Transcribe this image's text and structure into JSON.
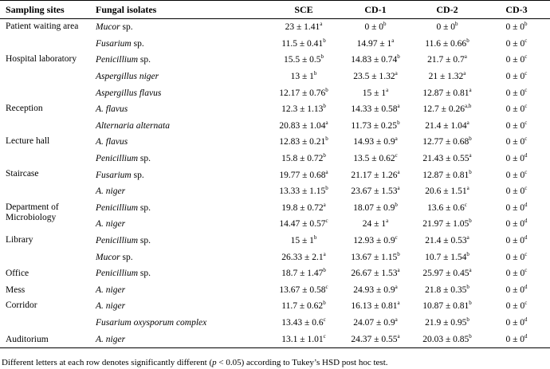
{
  "headers": {
    "site": "Sampling sites",
    "fungus": "Fungal isolates",
    "sce": "SCE",
    "cd1": "CD-1",
    "cd2": "CD-2",
    "cd3": "CD-3"
  },
  "sites": [
    {
      "name": "Patient waiting area",
      "rows": [
        {
          "genus": "Mucor",
          "sp": " sp.",
          "sce": "23 ± 1.41",
          "sce_s": "a",
          "cd1": "0 ± 0",
          "cd1_s": "b",
          "cd2": "0 ± 0",
          "cd2_s": "b",
          "cd3": "0 ± 0",
          "cd3_s": "b"
        },
        {
          "genus": "Fusarium",
          "sp": " sp.",
          "sce": "11.5 ± 0.41",
          "sce_s": "b",
          "cd1": "14.97 ± 1",
          "cd1_s": "a",
          "cd2": "11.6 ± 0.66",
          "cd2_s": "b",
          "cd3": "0 ± 0",
          "cd3_s": "c"
        }
      ]
    },
    {
      "name": "Hospital laboratory",
      "rows": [
        {
          "genus": "Penicillium",
          "sp": " sp.",
          "sce": "15.5 ± 0.5",
          "sce_s": "b",
          "cd1": "14.83 ± 0.74",
          "cd1_s": "b",
          "cd2": "21.7 ± 0.7",
          "cd2_s": "a",
          "cd3": "0 ± 0",
          "cd3_s": "c"
        },
        {
          "genus": "Aspergillus niger",
          "sp": "",
          "sce": "13 ± 1",
          "sce_s": "b",
          "cd1": "23.5 ± 1.32",
          "cd1_s": "a",
          "cd2": "21 ± 1.32",
          "cd2_s": "a",
          "cd3": "0 ± 0",
          "cd3_s": "c"
        },
        {
          "genus": "Aspergillus flavus",
          "sp": "",
          "sce": "12.17 ± 0.76",
          "sce_s": "b",
          "cd1": "15 ± 1",
          "cd1_s": "a",
          "cd2": "12.87 ± 0.81",
          "cd2_s": "a",
          "cd3": "0 ± 0",
          "cd3_s": "c"
        }
      ]
    },
    {
      "name": "Reception",
      "rows": [
        {
          "genus": "A. flavus",
          "sp": "",
          "sce": "12.3 ± 1.13",
          "sce_s": "b",
          "cd1": "14.33 ± 0.58",
          "cd1_s": "a",
          "cd2": "12.7 ± 0.26",
          "cd2_s": "a,b",
          "cd3": "0 ± 0",
          "cd3_s": "c"
        },
        {
          "genus": "Alternaria alternata",
          "sp": "",
          "sce": "20.83 ± 1.04",
          "sce_s": "a",
          "cd1": "11.73 ± 0.25",
          "cd1_s": "b",
          "cd2": "21.4 ± 1.04",
          "cd2_s": "a",
          "cd3": "0 ± 0",
          "cd3_s": "c"
        }
      ]
    },
    {
      "name": "Lecture hall",
      "rows": [
        {
          "genus": "A. flavus",
          "sp": "",
          "sce": "12.83 ± 0.21",
          "sce_s": "b",
          "cd1": "14.93 ± 0.9",
          "cd1_s": "a",
          "cd2": "12.77 ± 0.68",
          "cd2_s": "b",
          "cd3": "0 ± 0",
          "cd3_s": "c"
        },
        {
          "genus": "Penicillium",
          "sp": " sp.",
          "sce": "15.8 ± 0.72",
          "sce_s": "b",
          "cd1": "13.5 ± 0.62",
          "cd1_s": "c",
          "cd2": "21.43 ± 0.55",
          "cd2_s": "a",
          "cd3": "0 ± 0",
          "cd3_s": "d"
        }
      ]
    },
    {
      "name": "Staircase",
      "rows": [
        {
          "genus": "Fusarium",
          "sp": " sp.",
          "sce": "19.77 ± 0.68",
          "sce_s": "a",
          "cd1": "21.17 ± 1.26",
          "cd1_s": "a",
          "cd2": "12.87 ± 0.81",
          "cd2_s": "b",
          "cd3": "0 ± 0",
          "cd3_s": "c"
        },
        {
          "genus": "A. niger",
          "sp": "",
          "sce": "13.33 ± 1.15",
          "sce_s": "b",
          "cd1": "23.67 ± 1.53",
          "cd1_s": "a",
          "cd2": "20.6 ± 1.51",
          "cd2_s": "a",
          "cd3": "0 ± 0",
          "cd3_s": "c"
        }
      ]
    },
    {
      "name": "Department of Microbiology",
      "rows": [
        {
          "genus": "Penicillium",
          "sp": " sp.",
          "sce": "19.8 ± 0.72",
          "sce_s": "a",
          "cd1": "18.07 ± 0.9",
          "cd1_s": "b",
          "cd2": "13.6 ± 0.6",
          "cd2_s": "c",
          "cd3": "0 ± 0",
          "cd3_s": "d"
        },
        {
          "genus": "A. niger",
          "sp": "",
          "sce": "14.47 ± 0.57",
          "sce_s": "c",
          "cd1": "24 ± 1",
          "cd1_s": "a",
          "cd2": "21.97 ± 1.05",
          "cd2_s": "b",
          "cd3": "0 ± 0",
          "cd3_s": "d"
        }
      ]
    },
    {
      "name": "Library",
      "rows": [
        {
          "genus": "Penicillium",
          "sp": " sp.",
          "sce": "15 ± 1",
          "sce_s": "b",
          "cd1": "12.93 ± 0.9",
          "cd1_s": "c",
          "cd2": "21.4 ± 0.53",
          "cd2_s": "a",
          "cd3": "0 ± 0",
          "cd3_s": "d"
        },
        {
          "genus": "Mucor",
          "sp": " sp.",
          "sce": "26.33 ± 2.1",
          "sce_s": "a",
          "cd1": "13.67 ± 1.15",
          "cd1_s": "b",
          "cd2": "10.7 ± 1.54",
          "cd2_s": "b",
          "cd3": "0 ± 0",
          "cd3_s": "c"
        }
      ]
    },
    {
      "name": "Office",
      "rows": [
        {
          "genus": "Penicillium",
          "sp": " sp.",
          "sce": "18.7 ± 1.47",
          "sce_s": "b",
          "cd1": "26.67 ± 1.53",
          "cd1_s": "a",
          "cd2": "25.97 ± 0.45",
          "cd2_s": "a",
          "cd3": "0 ± 0",
          "cd3_s": "c"
        }
      ]
    },
    {
      "name": "Mess",
      "rows": [
        {
          "genus": "A. niger",
          "sp": "",
          "sce": "13.67 ± 0.58",
          "sce_s": "c",
          "cd1": "24.93 ± 0.9",
          "cd1_s": "a",
          "cd2": "21.8 ± 0.35",
          "cd2_s": "b",
          "cd3": "0 ± 0",
          "cd3_s": "d"
        }
      ]
    },
    {
      "name": "Corridor",
      "rows": [
        {
          "genus": "A. niger",
          "sp": "",
          "sce": "11.7 ± 0.62",
          "sce_s": "b",
          "cd1": "16.13 ± 0.81",
          "cd1_s": "a",
          "cd2": "10.87 ± 0.81",
          "cd2_s": "b",
          "cd3": "0 ± 0",
          "cd3_s": "c"
        },
        {
          "genus": "Fusarium oxysporum complex",
          "sp": "",
          "sce": "13.43 ± 0.6",
          "sce_s": "c",
          "cd1": "24.07 ± 0.9",
          "cd1_s": "a",
          "cd2": "21.9 ± 0.95",
          "cd2_s": "b",
          "cd3": "0 ± 0",
          "cd3_s": "d"
        }
      ]
    },
    {
      "name": "Auditorium",
      "rows": [
        {
          "genus": "A. niger",
          "sp": "",
          "sce": "13.1 ± 1.01",
          "sce_s": "c",
          "cd1": "24.37 ± 0.55",
          "cd1_s": "a",
          "cd2": "20.03 ± 0.85",
          "cd2_s": "b",
          "cd3": "0 ± 0",
          "cd3_s": "d"
        }
      ]
    }
  ],
  "footnote": {
    "before": "Different letters at each row denotes significantly different (",
    "p": "p",
    "after": " < 0.05) according to Tukey’s HSD post hoc test."
  }
}
